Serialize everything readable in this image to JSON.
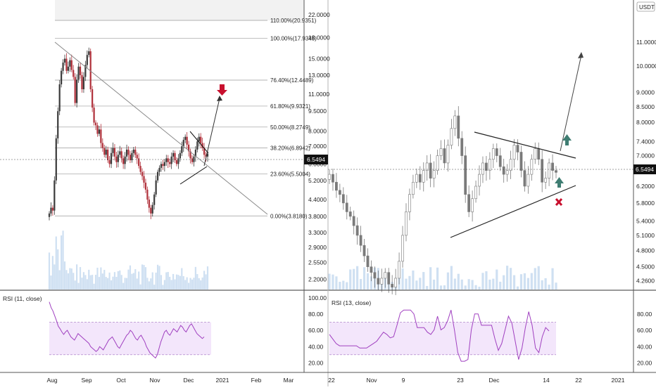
{
  "colors": {
    "bull": "#3a3a3a",
    "bear": "#b0303a",
    "bull_right": "#7a7a7a",
    "volume": "#cfe0f2",
    "rsi_line": "#a040c0",
    "rsi_band": "#f3e6fb",
    "rsi_bound": "#a070c0",
    "arrow_up": "#3f7d72",
    "arrow_down": "#c8102e",
    "cross": "#c8102e",
    "fib_line": "#9a9a9a",
    "fib_fill": "#f2f2f2"
  },
  "chart_data": [
    {
      "type": "candlestick",
      "panel": "left",
      "price_scale": "log",
      "ylim": [
        2.0,
        25.0
      ],
      "y_tick_labels": [
        "22.0000",
        "18.0000",
        "15.0000",
        "13.0000",
        "11.0000",
        "9.5000",
        "8.0000",
        "7.0000",
        "6.0000",
        "5.2000",
        "4.4000",
        "3.8000",
        "3.3000",
        "2.9000",
        "2.5500",
        "2.2000"
      ],
      "x_tick_labels": [
        "Aug",
        "Sep",
        "Oct",
        "Nov",
        "Dec",
        "2021",
        "Feb",
        "Mar"
      ],
      "last_price": "6.5494",
      "fib_levels": [
        {
          "label": "110.00%(20.9351)",
          "price": 20.9351
        },
        {
          "label": "100.00%(17.9345)",
          "price": 17.9345
        },
        {
          "label": "76.40%(12.4489)",
          "price": 12.4489
        },
        {
          "label": "61.80%(9.9321)",
          "price": 9.9321
        },
        {
          "label": "50.00%(8.2749)",
          "price": 8.2749
        },
        {
          "label": "38.20%(6.8942)",
          "price": 6.8942
        },
        {
          "label": "23.60%(5.5004)",
          "price": 5.5004
        },
        {
          "label": "0.00%(3.8180)",
          "price": 3.818
        }
      ],
      "closes": [
        3.9,
        4.1,
        4.0,
        5.2,
        7.5,
        9.5,
        12.0,
        13.5,
        14.5,
        15.0,
        13.5,
        14.0,
        14.8,
        13.6,
        12.8,
        10.2,
        12.5,
        14.0,
        13.0,
        11.5,
        12.8,
        14.2,
        15.5,
        16.0,
        11.5,
        9.8,
        8.6,
        8.4,
        7.8,
        8.1,
        7.2,
        6.9,
        6.5,
        6.8,
        6.2,
        6.0,
        6.6,
        6.9,
        6.4,
        6.1,
        6.5,
        6.7,
        6.3,
        6.0,
        6.4,
        6.8,
        6.5,
        6.2,
        6.6,
        6.8,
        6.5,
        6.3,
        5.9,
        5.6,
        5.4,
        5.1,
        4.8,
        4.4,
        4.1,
        3.9,
        4.2,
        4.6,
        5.2,
        5.6,
        5.8,
        6.0,
        5.9,
        6.1,
        6.3,
        6.1,
        6.0,
        6.4,
        6.6,
        6.2,
        6.0,
        6.3,
        6.6,
        7.0,
        7.4,
        7.6,
        7.1,
        6.7,
        6.3,
        6.1,
        6.4,
        6.8,
        7.3,
        7.6,
        7.2,
        6.9,
        6.5,
        6.4,
        6.55
      ],
      "rsi": {
        "label": "RSI (11, close)",
        "y_tick_labels": [
          "100.00",
          "80.00",
          "60.00",
          "40.00",
          "20.00"
        ],
        "bands": [
          70,
          30
        ],
        "values": [
          95,
          88,
          84,
          78,
          72,
          65,
          62,
          58,
          55,
          58,
          60,
          56,
          52,
          50,
          48,
          52,
          56,
          54,
          52,
          50,
          48,
          46,
          44,
          40,
          38,
          36,
          34,
          36,
          40,
          38,
          36,
          40,
          44,
          48,
          50,
          52,
          48,
          44,
          40,
          38,
          42,
          46,
          50,
          54,
          56,
          60,
          58,
          54,
          50,
          48,
          52,
          54,
          50,
          46,
          40,
          36,
          32,
          30,
          28,
          26,
          30,
          38,
          46,
          52,
          58,
          60,
          56,
          54,
          58,
          62,
          60,
          58,
          62,
          66,
          64,
          60,
          58,
          62,
          66,
          68,
          64,
          60,
          56,
          54,
          52,
          50,
          52
        ]
      }
    },
    {
      "type": "candlestick",
      "panel": "right",
      "price_scale": "log",
      "ylim": [
        4.1,
        13.0
      ],
      "currency": "USDT",
      "y_tick_labels": [
        "11.0000",
        "10.0000",
        "9.0000",
        "8.5000",
        "8.0000",
        "7.4000",
        "7.0000",
        "6.2000",
        "5.8000",
        "5.4000",
        "5.1000",
        "4.8000",
        "4.5000",
        "4.2600"
      ],
      "x_tick_labels": [
        "22",
        "Nov",
        "9",
        "23",
        "Dec",
        "14",
        "22",
        "2021"
      ],
      "last_price": "6.5494",
      "closes": [
        6.5,
        6.3,
        6.1,
        6.0,
        5.8,
        5.6,
        5.5,
        5.3,
        5.1,
        4.9,
        4.7,
        4.5,
        4.4,
        4.3,
        4.2,
        4.3,
        4.4,
        4.2,
        4.15,
        4.3,
        4.6,
        5.1,
        5.6,
        6.0,
        6.3,
        6.5,
        6.3,
        6.6,
        6.8,
        6.4,
        6.6,
        7.0,
        7.2,
        6.8,
        7.3,
        7.8,
        8.2,
        7.5,
        7.0,
        6.0,
        5.6,
        5.9,
        6.2,
        6.5,
        6.8,
        6.6,
        6.9,
        7.2,
        7.0,
        6.7,
        6.5,
        6.6,
        6.9,
        7.3,
        7.1,
        6.6,
        6.2,
        6.5,
        6.9,
        7.2,
        6.9,
        6.3,
        6.4,
        6.8,
        6.6,
        6.55
      ]
    }
  ]
}
